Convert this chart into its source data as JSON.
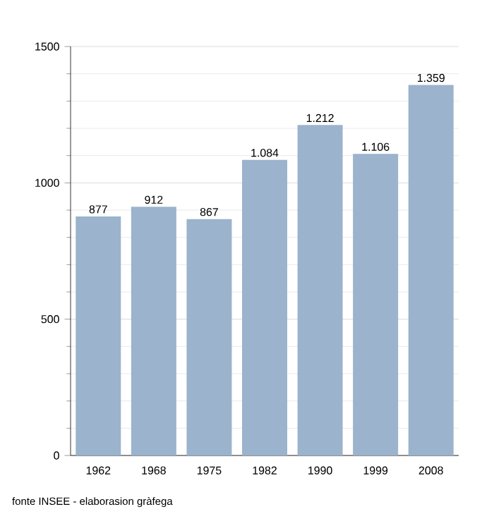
{
  "chart_data": {
    "type": "bar",
    "categories": [
      "1962",
      "1968",
      "1975",
      "1982",
      "1990",
      "1999",
      "2008"
    ],
    "values": [
      877,
      912,
      867,
      1084,
      1212,
      1106,
      1359
    ],
    "value_labels": [
      "877",
      "912",
      "867",
      "1.084",
      "1.212",
      "1.106",
      "1.359"
    ],
    "color": "#9bb3cc",
    "ylim": [
      0,
      1500
    ],
    "yticks": [
      0,
      500,
      1000,
      1500
    ],
    "grid": "y",
    "annotations": [
      "fonte INSEE - elaborasion gràfega"
    ]
  }
}
